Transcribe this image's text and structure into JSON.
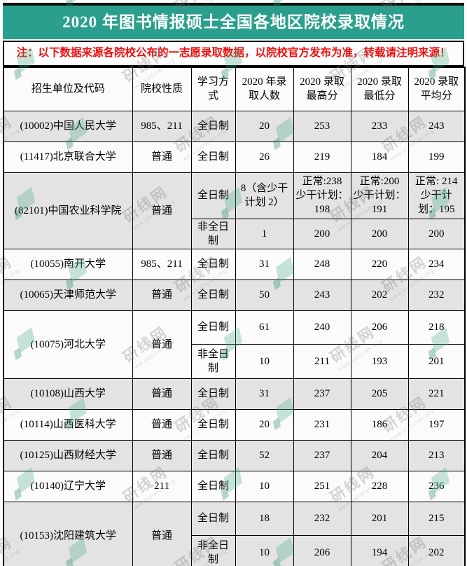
{
  "banner": {
    "title": "2020 年图书情报硕士全国各地区院校录取情况"
  },
  "note": {
    "text": "注：以下数据来源各院校公布的一志愿录取数据，以院校官方发布为准，转载请注明来源！"
  },
  "watermark": {
    "text": "研线网",
    "url": "www.yanxian.org"
  },
  "colors": {
    "banner_bg": "#2b9f8d",
    "note_text": "#ee0f0f",
    "row_shade": "#e3e3e3",
    "border": "#000000",
    "watermark_green": "#48a880"
  },
  "table": {
    "headers": [
      "招生单位及代码",
      "院校性质",
      "学习方式",
      "2020 年录取人数",
      "2020 录取最高分",
      "2020 录取最低分",
      "2020 录取平均分"
    ],
    "groups": [
      {
        "unit": "(10002)中国人民大学",
        "nature": "985、211",
        "subs": [
          {
            "mode": "全日制",
            "count": "20",
            "max": "253",
            "min": "233",
            "avg": "243"
          }
        ]
      },
      {
        "unit": "(11417)北京联合大学",
        "nature": "普通",
        "subs": [
          {
            "mode": "全日制",
            "count": "26",
            "max": "219",
            "min": "184",
            "avg": "199"
          }
        ]
      },
      {
        "unit": "(82101)中国农业科学院",
        "nature": "普通",
        "subs": [
          {
            "mode": "全日制",
            "count": "8（含少干计划 2）",
            "max": "正常:238 少干计划：198",
            "min": "正常:200 少干计划：191",
            "avg": "正常: 214 少干计划：195"
          },
          {
            "mode": "非全日制",
            "count": "1",
            "max": "200",
            "min": "200",
            "avg": "200"
          }
        ]
      },
      {
        "unit": "(10055)南开大学",
        "nature": "985、211",
        "subs": [
          {
            "mode": "全日制",
            "count": "31",
            "max": "248",
            "min": "220",
            "avg": "234"
          }
        ]
      },
      {
        "unit": "(10065)天津师范大学",
        "nature": "普通",
        "subs": [
          {
            "mode": "全日制",
            "count": "50",
            "max": "243",
            "min": "202",
            "avg": "232"
          }
        ]
      },
      {
        "unit": "(10075)河北大学",
        "nature": "普通",
        "subs": [
          {
            "mode": "全日制",
            "count": "61",
            "max": "240",
            "min": "206",
            "avg": "218"
          },
          {
            "mode": "非全日制",
            "count": "10",
            "max": "211",
            "min": "193",
            "avg": "201"
          }
        ]
      },
      {
        "unit": "(10108)山西大学",
        "nature": "普通",
        "subs": [
          {
            "mode": "全日制",
            "count": "31",
            "max": "237",
            "min": "205",
            "avg": "221"
          }
        ]
      },
      {
        "unit": "(10114)山西医科大学",
        "nature": "普通",
        "subs": [
          {
            "mode": "全日制",
            "count": "20",
            "max": "231",
            "min": "186",
            "avg": "197"
          }
        ]
      },
      {
        "unit": "(10125)山西财经大学",
        "nature": "普通",
        "subs": [
          {
            "mode": "全日制",
            "count": "52",
            "max": "237",
            "min": "204",
            "avg": "213"
          }
        ]
      },
      {
        "unit": "(10140)辽宁大学",
        "nature": "211",
        "subs": [
          {
            "mode": "全日制",
            "count": "10",
            "max": "251",
            "min": "228",
            "avg": "236"
          }
        ]
      },
      {
        "unit": "(10153)沈阳建筑大学",
        "nature": "普通",
        "subs": [
          {
            "mode": "全日制",
            "count": "18",
            "max": "232",
            "min": "201",
            "avg": "215"
          },
          {
            "mode": "非全日制",
            "count": "10",
            "max": "206",
            "min": "194",
            "avg": "202"
          }
        ]
      }
    ]
  }
}
